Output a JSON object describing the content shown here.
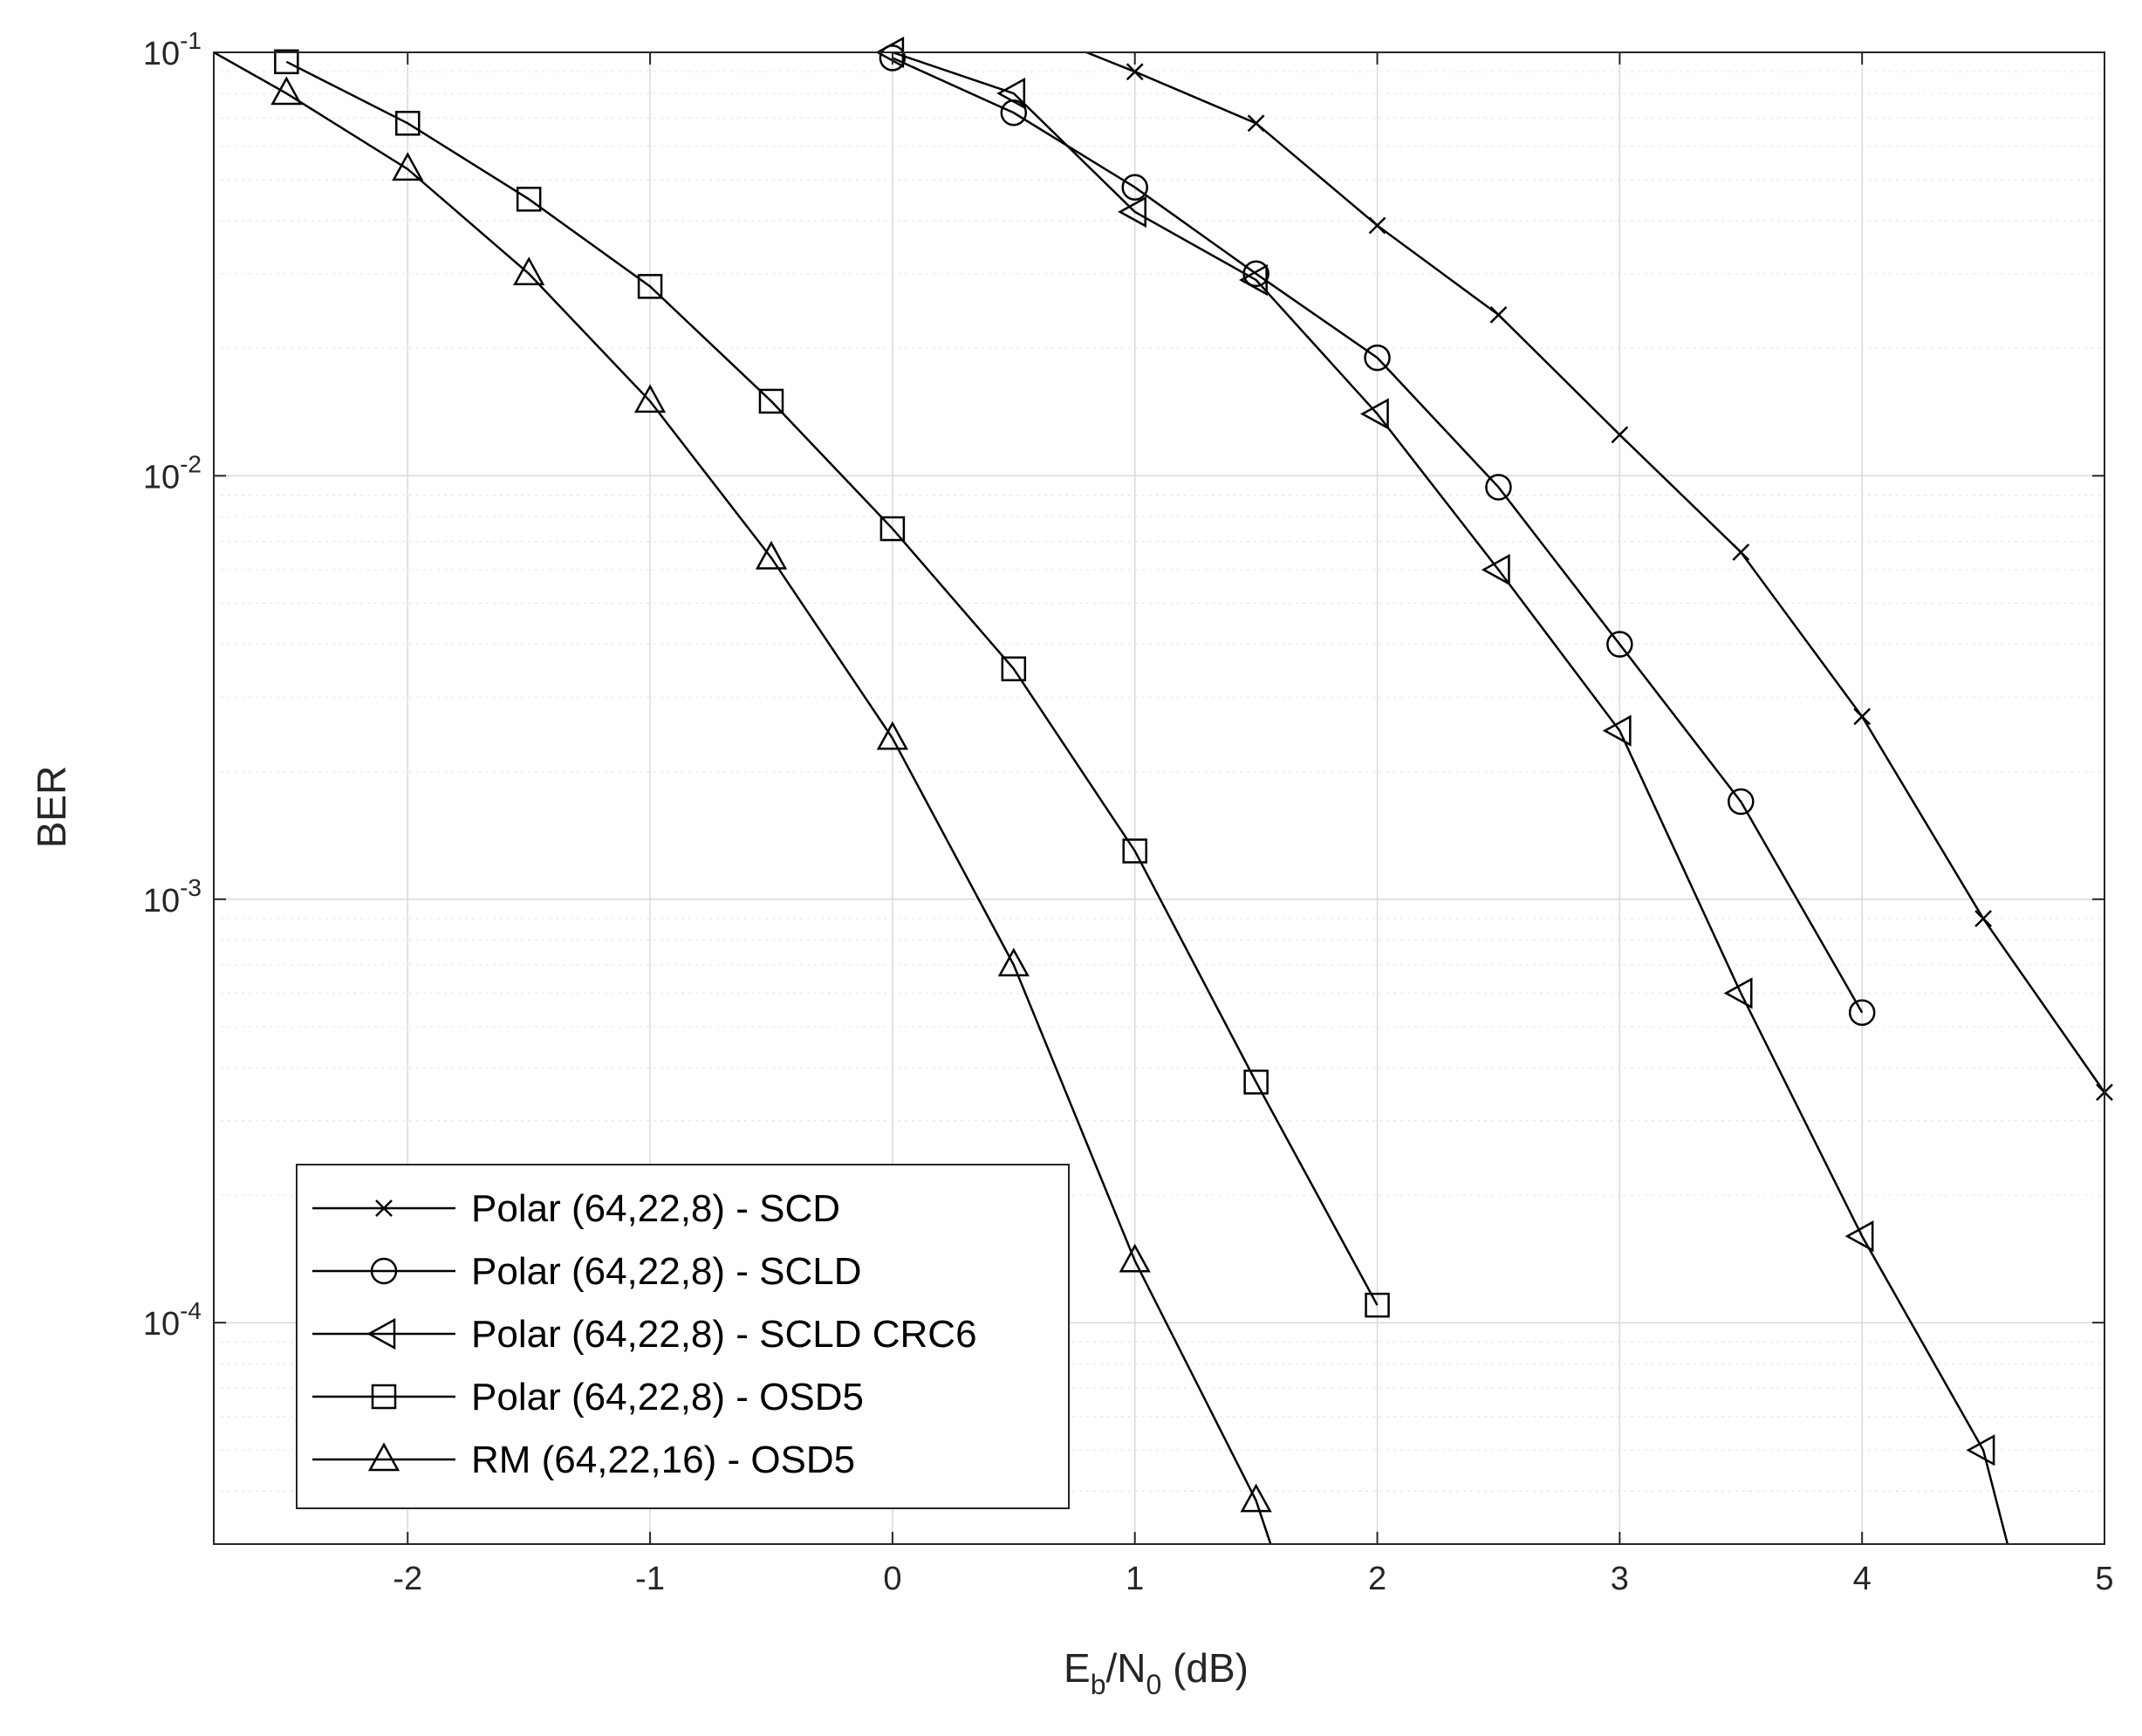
{
  "chart_data": {
    "type": "line",
    "title": "",
    "xlabel": {
      "base": "E",
      "sub1": "b",
      "mid": "/N",
      "sub2": "0",
      "tail": " (dB)"
    },
    "ylabel": "BER",
    "xlim": [
      -2.8,
      5
    ],
    "ylim": [
      3e-05,
      0.1
    ],
    "yscale": "log",
    "xticks": [
      -2,
      -1,
      0,
      1,
      2,
      3,
      4,
      5
    ],
    "xtick_labels": [
      "-2",
      "-1",
      "0",
      "1",
      "2",
      "3",
      "4",
      "5"
    ],
    "yticks": [
      0.0001,
      0.001,
      0.01,
      0.1
    ],
    "ytick_labels": [
      {
        "base": "10",
        "exp": "-4"
      },
      {
        "base": "10",
        "exp": "-3"
      },
      {
        "base": "10",
        "exp": "-2"
      },
      {
        "base": "10",
        "exp": "-1"
      }
    ],
    "grid": true,
    "minor_grid": true,
    "legend_position": "bottom-left",
    "colors": {
      "line": "#000000",
      "grid": "#d9d9d9",
      "minor_grid": "#e6e6e6",
      "axis": "#262626"
    },
    "series": [
      {
        "name": "Polar (64,22,8) - SCD",
        "marker": "x",
        "x": [
          0.8,
          1.0,
          1.5,
          2.0,
          2.5,
          3.0,
          3.5,
          4.0,
          4.5,
          5.0
        ],
        "y": [
          0.1,
          0.09,
          0.068,
          0.039,
          0.024,
          0.0125,
          0.0066,
          0.0027,
          0.0009,
          0.00035
        ],
        "markers": [
          false,
          true,
          true,
          true,
          true,
          true,
          true,
          true,
          true,
          true
        ]
      },
      {
        "name": "Polar (64,22,8) - SCLD",
        "marker": "circle",
        "x": [
          0.0,
          0.5,
          1.0,
          1.5,
          2.0,
          2.5,
          3.0,
          3.5,
          4.0
        ],
        "y": [
          0.097,
          0.072,
          0.048,
          0.03,
          0.019,
          0.0094,
          0.004,
          0.0017,
          0.00054
        ]
      },
      {
        "name": "Polar (64,22,8) - SCLD CRC6",
        "marker": "triangle-left",
        "x": [
          0.0,
          0.5,
          1.0,
          1.5,
          2.0,
          2.5,
          3.0,
          3.5,
          4.0,
          4.5,
          4.6
        ],
        "y": [
          0.1,
          0.08,
          0.042,
          0.029,
          0.014,
          0.006,
          0.0025,
          0.0006,
          0.00016,
          5e-05,
          3e-05
        ],
        "markers": [
          true,
          true,
          true,
          true,
          true,
          true,
          true,
          true,
          true,
          true,
          false
        ]
      },
      {
        "name": "Polar (64,22,8) - OSD5",
        "marker": "square",
        "x": [
          -2.5,
          -2.0,
          -1.5,
          -1.0,
          -0.5,
          0.0,
          0.5,
          1.0,
          1.5,
          2.0
        ],
        "y": [
          0.095,
          0.068,
          0.045,
          0.028,
          0.015,
          0.0075,
          0.0035,
          0.0013,
          0.00037,
          0.00011
        ]
      },
      {
        "name": "RM (64,22,16) - OSD5",
        "marker": "triangle-up",
        "x": [
          -2.8,
          -2.5,
          -2.0,
          -1.5,
          -1.0,
          -0.5,
          0.0,
          0.5,
          1.0,
          1.5,
          1.56
        ],
        "y": [
          0.1,
          0.08,
          0.053,
          0.03,
          0.015,
          0.0064,
          0.0024,
          0.0007,
          0.00014,
          3.8e-05,
          3e-05
        ],
        "markers": [
          false,
          true,
          true,
          true,
          true,
          true,
          true,
          true,
          true,
          true,
          false
        ]
      }
    ]
  }
}
